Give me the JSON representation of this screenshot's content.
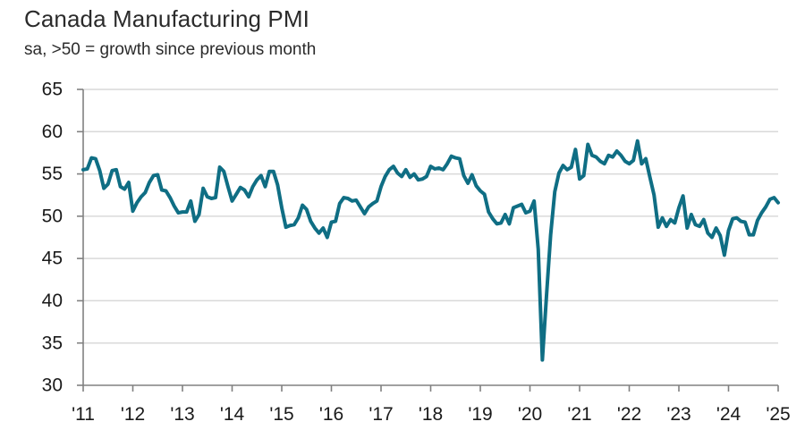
{
  "chart_data": {
    "type": "line",
    "title": "Canada Manufacturing PMI",
    "subtitle": "sa, >50 = growth since previous month",
    "xlabel": "",
    "ylabel": "",
    "ylim": [
      30,
      65
    ],
    "yticks": [
      30,
      35,
      40,
      45,
      50,
      55,
      60,
      65
    ],
    "ytick_labels": [
      "30",
      "35",
      "40",
      "45",
      "50",
      "55",
      "60",
      "65"
    ],
    "xticks": [
      "'11",
      "'12",
      "'13",
      "'14",
      "'15",
      "'16",
      "'17",
      "'18",
      "'19",
      "'20",
      "'21",
      "'22",
      "'23",
      "'24",
      "'25"
    ],
    "x_start": "2011-01",
    "x_end": "2025-01",
    "x_frequency": "monthly",
    "grid": true,
    "legend": "none",
    "series": [
      {
        "name": "Canada Manufacturing PMI",
        "color": "#0f6e84",
        "start": "2011-01",
        "values": [
          55.5,
          55.6,
          56.9,
          56.8,
          55.4,
          53.3,
          53.8,
          55.4,
          55.5,
          53.5,
          53.2,
          54.0,
          50.6,
          51.6,
          52.3,
          52.8,
          54.0,
          54.8,
          54.9,
          53.1,
          53.0,
          52.2,
          51.2,
          50.4,
          50.5,
          50.5,
          51.8,
          49.4,
          50.2,
          53.3,
          52.3,
          52.1,
          52.2,
          55.8,
          55.3,
          53.5,
          51.8,
          52.6,
          53.4,
          53.1,
          52.3,
          53.5,
          54.3,
          54.8,
          53.5,
          55.3,
          55.3,
          53.7,
          51.0,
          48.7,
          48.9,
          49.0,
          49.8,
          51.3,
          50.8,
          49.4,
          48.6,
          48.0,
          48.6,
          47.5,
          49.3,
          49.4,
          51.5,
          52.2,
          52.1,
          51.8,
          51.9,
          51.1,
          50.3,
          51.1,
          51.5,
          51.8,
          53.5,
          54.7,
          55.5,
          55.9,
          55.1,
          54.7,
          55.5,
          54.6,
          55.0,
          54.3,
          54.4,
          54.7,
          55.9,
          55.6,
          55.7,
          55.5,
          56.2,
          57.1,
          56.9,
          56.8,
          54.8,
          53.9,
          54.9,
          53.6,
          53.0,
          52.6,
          50.5,
          49.7,
          49.1,
          49.2,
          50.2,
          49.1,
          51.0,
          51.2,
          51.4,
          50.4,
          50.6,
          51.8,
          46.1,
          33.0,
          40.6,
          47.8,
          52.9,
          55.1,
          56.0,
          55.5,
          55.8,
          57.9,
          54.4,
          54.8,
          58.5,
          57.2,
          57.0,
          56.5,
          56.2,
          57.2,
          57.0,
          57.7,
          57.2,
          56.5,
          56.2,
          56.6,
          58.9,
          56.2,
          56.8,
          54.6,
          52.5,
          48.7,
          49.8,
          48.8,
          49.6,
          49.2,
          51.0,
          52.4,
          48.6,
          50.2,
          49.0,
          48.8,
          49.6,
          48.0,
          47.5,
          48.6,
          47.7,
          45.4,
          48.3,
          49.7,
          49.8,
          49.4,
          49.3,
          47.8,
          47.8,
          49.5,
          50.4,
          51.1,
          52.0,
          52.2,
          51.6
        ]
      }
    ]
  }
}
